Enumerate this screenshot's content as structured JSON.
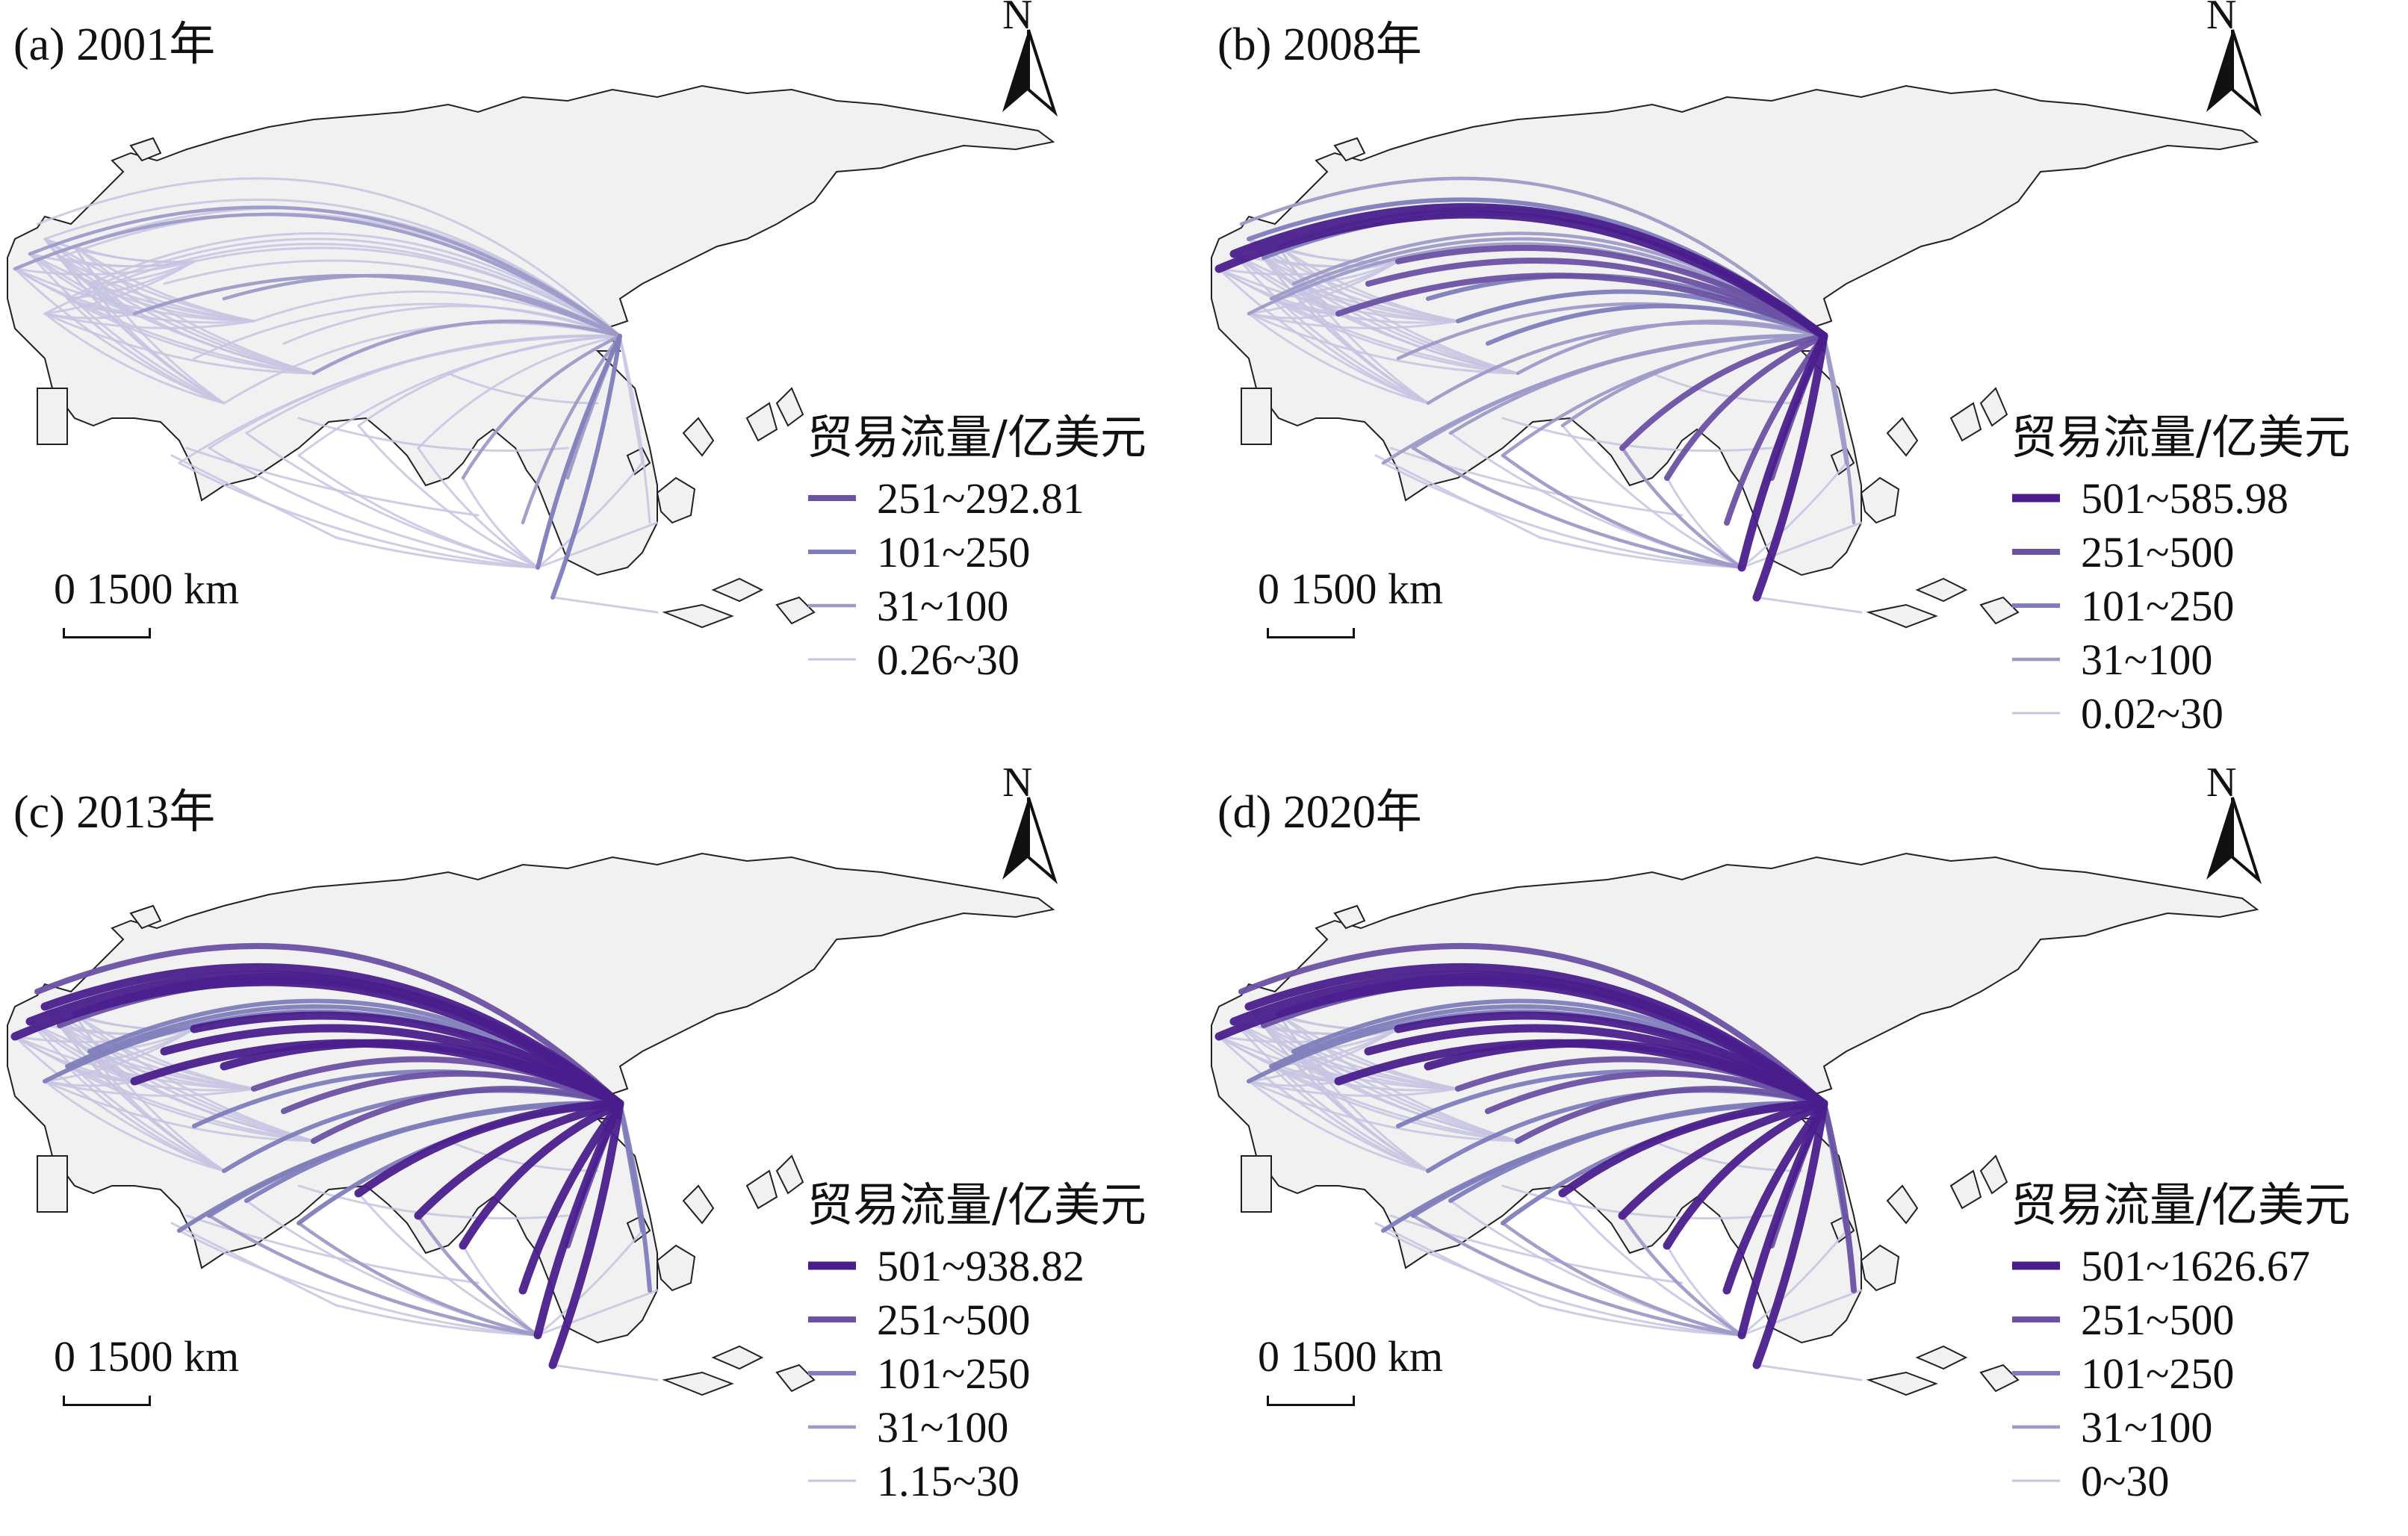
{
  "legend_title": "贸易流量/亿美元",
  "scale_label": "0 1500 km",
  "north_label": "N",
  "colors": {
    "land": "#f1f1f1",
    "coast": "#222222",
    "class1": "#4a1d8c",
    "class2": "#6a51a3",
    "class3": "#807dba",
    "class4": "#9e9ac8",
    "class5": "#c7c4e2"
  },
  "panels": [
    {
      "title": "(a) 2001年",
      "legend": [
        "251~292.81",
        "101~250",
        "31~100",
        "0.26~30"
      ],
      "legend_classes": [
        2,
        3,
        4,
        5
      ]
    },
    {
      "title": "(b) 2008年",
      "legend": [
        "501~585.98",
        "251~500",
        "101~250",
        "31~100",
        "0.02~30"
      ],
      "legend_classes": [
        1,
        2,
        3,
        4,
        5
      ]
    },
    {
      "title": "(c) 2013年",
      "legend": [
        "501~938.82",
        "251~500",
        "101~250",
        "31~100",
        "1.15~30"
      ],
      "legend_classes": [
        1,
        2,
        3,
        4,
        5
      ]
    },
    {
      "title": "(d) 2020年",
      "legend": [
        "501~1626.67",
        "251~500",
        "101~250",
        "31~100",
        "0~30"
      ],
      "legend_classes": [
        1,
        2,
        3,
        4,
        5
      ]
    }
  ]
}
